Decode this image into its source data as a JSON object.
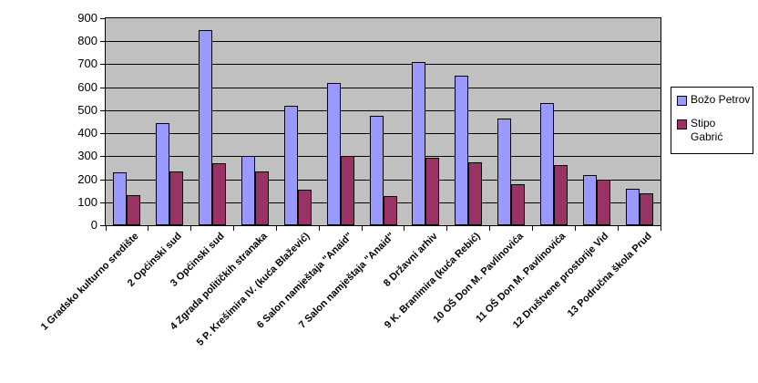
{
  "chart_data": {
    "type": "bar",
    "title": "",
    "xlabel": "",
    "ylabel": "",
    "categories": [
      "1 Gradsko kulturno središte",
      "2 Općinski sud",
      "3 Općinski sud",
      "4 Zgrada političkih stranaka",
      "5 P. Krešimira IV. (kuća Blažević)",
      "6 Salon namještaja \"Anaid\"",
      "7 Salon namještaja \"Anaid\"",
      "8 Državni arhiv",
      "9 K. Branimira (kuća Rebić)",
      "10 OŠ Don M. Pavlinovića",
      "11 OŠ Don M. Pavlinovića",
      "12 Društvene prostorije Vid",
      "13 Područna škola Prud"
    ],
    "series": [
      {
        "name": "Božo Petrov",
        "color": "#9999FF",
        "values": [
          230,
          445,
          850,
          300,
          520,
          620,
          475,
          710,
          650,
          465,
          530,
          220,
          160
        ]
      },
      {
        "name": "Stipo Gabrić",
        "color": "#993366",
        "values": [
          130,
          235,
          270,
          235,
          155,
          300,
          125,
          295,
          275,
          180,
          260,
          200,
          140
        ]
      }
    ],
    "ylim": [
      0,
      900
    ],
    "ytick_step": 100,
    "grid": true,
    "legend_position": "right",
    "plot_background": "#C0C0C0",
    "axis_color": "#000000",
    "page_background": "#FFFFFF"
  },
  "legend": {
    "items": [
      {
        "series_index": 0,
        "lines": [
          "Božo Petrov"
        ]
      },
      {
        "series_index": 1,
        "lines": [
          "Stipo",
          "Gabrić"
        ]
      }
    ]
  }
}
